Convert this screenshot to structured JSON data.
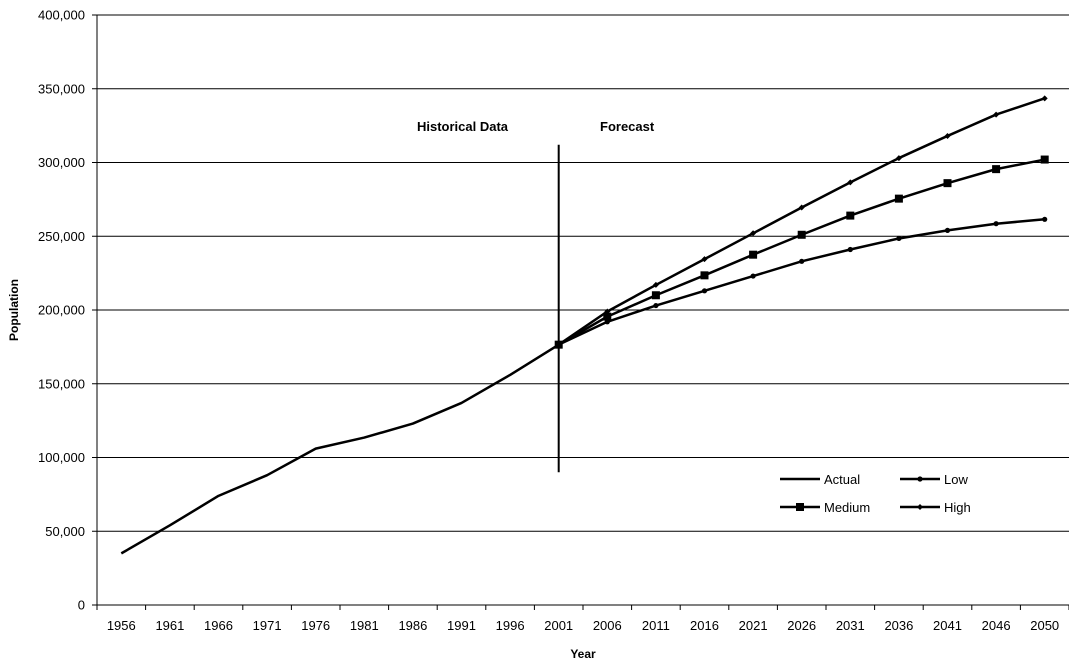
{
  "chart_data": {
    "type": "line",
    "title": "",
    "xlabel": "Year",
    "ylabel": "Population",
    "ylim": [
      0,
      400000
    ],
    "ytick_labels": [
      "0",
      "50,000",
      "100,000",
      "150,000",
      "200,000",
      "250,000",
      "300,000",
      "350,000",
      "400,000"
    ],
    "categories": [
      "1956",
      "1961",
      "1966",
      "1971",
      "1976",
      "1981",
      "1986",
      "1991",
      "1996",
      "2001",
      "2006",
      "2011",
      "2016",
      "2021",
      "2026",
      "2031",
      "2036",
      "2041",
      "2046",
      "2050"
    ],
    "grid": "horizontal",
    "legend_position": "bottom-right",
    "annotations": {
      "historical": "Historical Data",
      "forecast": "Forecast",
      "divider_year": 2001,
      "divider_range": [
        90000,
        312000
      ]
    },
    "series": [
      {
        "name": "Actual",
        "marker": "none",
        "color": "#000000",
        "x": [
          1956,
          1961,
          1966,
          1971,
          1976,
          1981,
          1986,
          1991,
          1996,
          2001
        ],
        "values": [
          35000,
          54000,
          74000,
          88000,
          106000,
          113500,
          123000,
          137000,
          156000,
          176500
        ]
      },
      {
        "name": "Low",
        "marker": "circle",
        "color": "#000000",
        "x": [
          2001,
          2006,
          2011,
          2016,
          2021,
          2026,
          2031,
          2036,
          2041,
          2046,
          2050
        ],
        "values": [
          176500,
          192000,
          203000,
          213000,
          223000,
          233000,
          241000,
          248500,
          254000,
          258500,
          261500
        ]
      },
      {
        "name": "Medium",
        "marker": "square",
        "color": "#000000",
        "x": [
          2001,
          2006,
          2011,
          2016,
          2021,
          2026,
          2031,
          2036,
          2041,
          2046,
          2050
        ],
        "values": [
          176500,
          195500,
          210000,
          223500,
          237500,
          251000,
          264000,
          275500,
          286000,
          295500,
          302000
        ]
      },
      {
        "name": "High",
        "marker": "diamond",
        "color": "#000000",
        "x": [
          2001,
          2006,
          2011,
          2016,
          2021,
          2026,
          2031,
          2036,
          2041,
          2046,
          2050
        ],
        "values": [
          176500,
          199000,
          217000,
          234500,
          252000,
          269500,
          286500,
          303000,
          318000,
          332500,
          343500
        ]
      }
    ]
  }
}
